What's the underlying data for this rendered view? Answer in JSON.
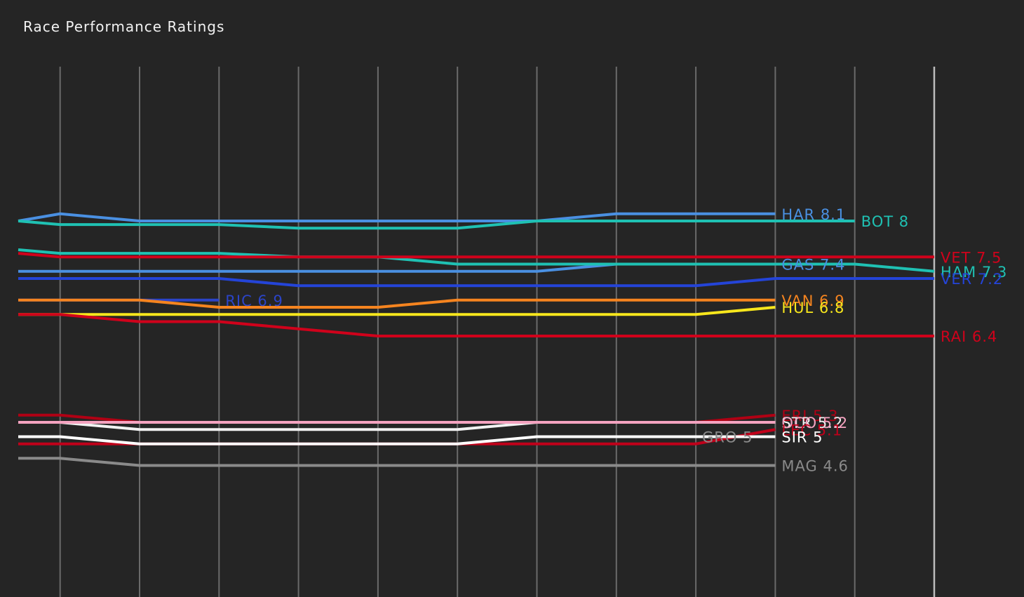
{
  "chart_data": {
    "type": "line",
    "title": "Race Performance Ratings",
    "xlabel": "",
    "ylabel": "",
    "rounds": 12,
    "grid": "vertical",
    "ylim": [
      4.0,
      9.5
    ],
    "series": [
      {
        "name": "HAR",
        "label": "HAR 8.1",
        "color": "#4a90e2",
        "values": [
          8.0,
          8.1,
          8.0,
          8.0,
          8.0,
          8.0,
          8.0,
          8.0,
          8.1,
          8.1,
          8.1
        ]
      },
      {
        "name": "BOT",
        "label": "BOT 8",
        "color": "#1fc1b3",
        "values": [
          8.0,
          7.95,
          7.95,
          7.95,
          7.9,
          7.9,
          7.9,
          8.0,
          8.0,
          8.0,
          8.0,
          8.0
        ]
      },
      {
        "name": "GAS",
        "label": "GAS 7.4",
        "color": "#4a90e2",
        "values": [
          7.3,
          7.3,
          7.3,
          7.3,
          7.3,
          7.3,
          7.3,
          7.3,
          7.4,
          7.4,
          7.4
        ]
      },
      {
        "name": "HAM",
        "label": "HAM 7.3",
        "color": "#1fc1b3",
        "values": [
          7.6,
          7.55,
          7.55,
          7.55,
          7.5,
          7.5,
          7.4,
          7.4,
          7.4,
          7.4,
          7.4,
          7.4,
          7.3
        ]
      },
      {
        "name": "VET",
        "label": "VET 7.5",
        "color": "#d0021b",
        "values": [
          7.55,
          7.5,
          7.5,
          7.5,
          7.5,
          7.5,
          7.5,
          7.5,
          7.5,
          7.5,
          7.5,
          7.5,
          7.5
        ]
      },
      {
        "name": "VER",
        "label": "VER 7.2",
        "color": "#2444d8",
        "values": [
          7.2,
          7.2,
          7.2,
          7.2,
          7.1,
          7.1,
          7.1,
          7.1,
          7.1,
          7.1,
          7.2,
          7.2,
          7.2
        ]
      },
      {
        "name": "RIC",
        "label": "RIC 6.9",
        "color": "#2b44c8",
        "values": [
          6.9,
          6.9,
          6.9,
          6.9
        ]
      },
      {
        "name": "VAN",
        "label": "VAN 6.9",
        "color": "#f5841f",
        "values": [
          6.9,
          6.9,
          6.9,
          6.8,
          6.8,
          6.8,
          6.9,
          6.9,
          6.9,
          6.9,
          6.9
        ]
      },
      {
        "name": "HUL",
        "label": "HUL 6.8",
        "color": "#f8e71c",
        "values": [
          6.7,
          6.7,
          6.7,
          6.7,
          6.7,
          6.7,
          6.7,
          6.7,
          6.7,
          6.7,
          6.8
        ]
      },
      {
        "name": "RAI",
        "label": "RAI 6.4",
        "color": "#d0021b",
        "values": [
          6.7,
          6.7,
          6.6,
          6.6,
          6.5,
          6.4,
          6.4,
          6.4,
          6.4,
          6.4,
          6.4,
          6.4,
          6.4
        ]
      },
      {
        "name": "ERI",
        "label": "ERI 5.3",
        "color": "#b00014",
        "values": [
          5.3,
          5.3,
          5.2,
          5.2,
          5.2,
          5.2,
          5.2,
          5.2,
          5.2,
          5.2,
          5.3
        ]
      },
      {
        "name": "STR",
        "label": "STR 5.2",
        "color": "#f2f2f2",
        "values": [
          5.2,
          5.2,
          5.1,
          5.1,
          5.1,
          5.1,
          5.1,
          5.2,
          5.2,
          5.2,
          5.2
        ]
      },
      {
        "name": "OCO",
        "label": "OCO 5.2",
        "color": "#f4a3c0",
        "values": [
          5.2,
          5.2,
          5.2,
          5.2,
          5.2,
          5.2,
          5.2,
          5.2,
          5.2,
          5.2,
          5.2
        ]
      },
      {
        "name": "LEC",
        "label": "LEC 5.1",
        "color": "#c0001a",
        "values": [
          4.9,
          4.9,
          4.9,
          4.9,
          4.9,
          4.9,
          4.9,
          4.9,
          4.9,
          4.9,
          5.1
        ]
      },
      {
        "name": "SIR",
        "label": "SIR 5",
        "color": "#ffffff",
        "values": [
          5.0,
          5.0,
          4.9,
          4.9,
          4.9,
          4.9,
          4.9,
          5.0,
          5.0,
          5.0,
          5.0
        ]
      },
      {
        "name": "GRO",
        "label": "GRO 5",
        "color": "#8a8a8a",
        "values": []
      },
      {
        "name": "MAG",
        "label": "MAG 4.6",
        "color": "#8a8a8a",
        "values": [
          4.7,
          4.7,
          4.6,
          4.6,
          4.6,
          4.6,
          4.6,
          4.6,
          4.6,
          4.6,
          4.6
        ]
      }
    ]
  }
}
